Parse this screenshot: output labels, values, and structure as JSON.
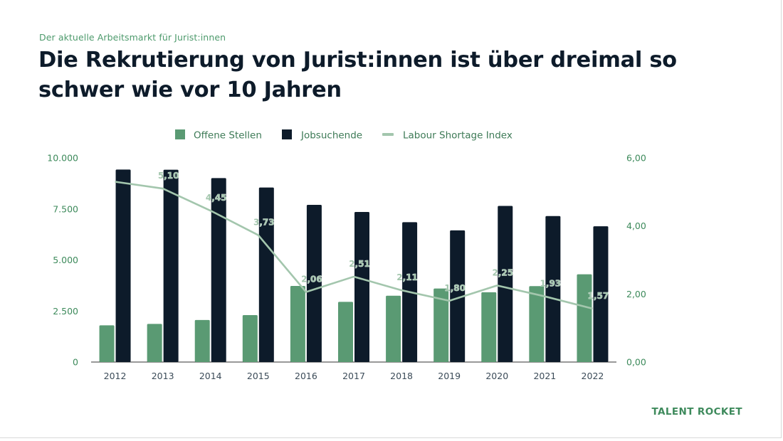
{
  "eyebrow": "Der aktuelle Arbeitsmarkt für Jurist:innen",
  "title": "Die Rekrutierung von Jurist:innen ist über dreimal so schwer wie vor 10 Jahren",
  "brand": "TALENT ROCKET",
  "colors": {
    "offene": "#5a9a73",
    "jobsuchende": "#0d1b2a",
    "index": "#a3c6ad",
    "tick": "#3d8a5b"
  },
  "chart_data": {
    "type": "bar",
    "categories": [
      "2012",
      "2013",
      "2014",
      "2015",
      "2016",
      "2017",
      "2018",
      "2019",
      "2020",
      "2021",
      "2022"
    ],
    "series": [
      {
        "name": "Offene Stellen",
        "axis": "left",
        "kind": "bar",
        "values": [
          1800,
          1870,
          2060,
          2300,
          3730,
          2950,
          3250,
          3600,
          3420,
          3720,
          4300
        ]
      },
      {
        "name": "Jobsuchende",
        "axis": "left",
        "kind": "bar",
        "values": [
          9430,
          9420,
          9010,
          8550,
          7700,
          7350,
          6850,
          6450,
          7650,
          7150,
          6650
        ]
      },
      {
        "name": "Labour Shortage Index",
        "axis": "right",
        "kind": "line",
        "values": [
          5.3,
          5.1,
          4.45,
          3.73,
          2.06,
          2.51,
          2.11,
          1.8,
          2.25,
          1.93,
          1.57
        ],
        "labels": [
          "",
          "5,10",
          "4,45",
          "3,73",
          "2,06",
          "2,51",
          "2,11",
          "1,80",
          "2,25",
          "1,93",
          "1,57"
        ]
      }
    ],
    "y_left": {
      "range": [
        0,
        10000
      ],
      "ticks": [
        0,
        2500,
        5000,
        7500,
        10000
      ],
      "tick_labels": [
        "0",
        "2.500",
        "5.000",
        "7.500",
        "10.000"
      ]
    },
    "y_right": {
      "range": [
        0,
        6
      ],
      "ticks": [
        0,
        2,
        4,
        6
      ],
      "tick_labels": [
        "0,00",
        "2,00",
        "4,00",
        "6,00"
      ]
    },
    "legend": [
      "Offene Stellen",
      "Jobsuchende",
      "Labour Shortage Index"
    ],
    "legend_position": "top-center",
    "grid": false
  }
}
